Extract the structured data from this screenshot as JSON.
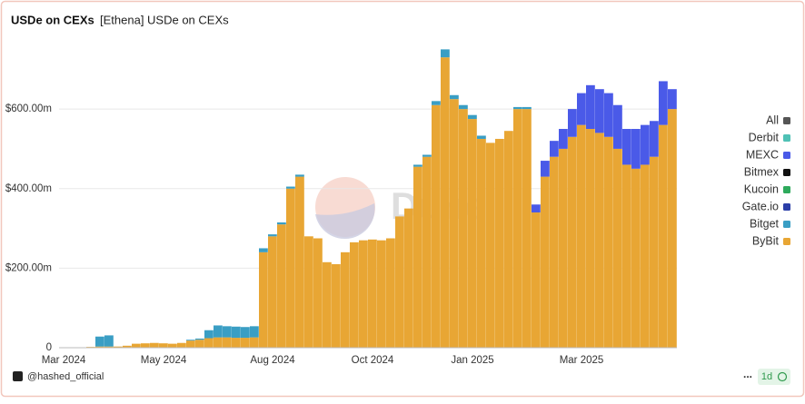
{
  "chart_data": {
    "type": "stacked-bar",
    "title": "USDe on CEXs",
    "subtitle": "[Ethena] USDe on CEXs",
    "watermark": "Dune",
    "author": "@hashed_official",
    "menu": "...",
    "interval": "1d",
    "categories": [
      "Mar 2024",
      null,
      null,
      null,
      null,
      null,
      null,
      null,
      null,
      null,
      null,
      "May 2024",
      null,
      null,
      null,
      null,
      null,
      null,
      null,
      null,
      null,
      null,
      null,
      "Aug 2024",
      null,
      null,
      null,
      null,
      null,
      null,
      null,
      null,
      null,
      null,
      "Oct 2024",
      null,
      null,
      null,
      null,
      null,
      null,
      null,
      null,
      null,
      null,
      "Jan 2025",
      null,
      null,
      null,
      null,
      null,
      null,
      null,
      null,
      null,
      null,
      null,
      "Mar 2025",
      null,
      null,
      null,
      null,
      null,
      null,
      null,
      null,
      null,
      null
    ],
    "ylim": [
      0,
      760
    ],
    "yticks": [
      0,
      {
        "value": 200,
        "label": "$200.00m"
      },
      {
        "value": 400,
        "label": "$400.00m"
      },
      {
        "value": 600,
        "label": "$600.00m"
      }
    ],
    "grid": true,
    "legend": "right",
    "series": [
      {
        "name": "All",
        "color": "#555555",
        "values": [
          0,
          0,
          0,
          0,
          0,
          0,
          0,
          0,
          0,
          0,
          0,
          0,
          0,
          0,
          0,
          0,
          0,
          0,
          0,
          0,
          0,
          0,
          0,
          0,
          0,
          0,
          0,
          0,
          0,
          0,
          0,
          0,
          0,
          0,
          0,
          0,
          0,
          0,
          0,
          0,
          0,
          0,
          0,
          0,
          0,
          0,
          0,
          0,
          0,
          0,
          0,
          0,
          0,
          0,
          0,
          0,
          0,
          0,
          0,
          0,
          0,
          0,
          0,
          0,
          0,
          0,
          0,
          0
        ]
      },
      {
        "name": "Derbit",
        "color": "#4fc1b5",
        "values": [
          0,
          0,
          0,
          0,
          0,
          0,
          0,
          0,
          0,
          0,
          0,
          0,
          0,
          0,
          0,
          0,
          0,
          0,
          0,
          0,
          0,
          0,
          0,
          0,
          0,
          0,
          0,
          0,
          0,
          0,
          0,
          0,
          0,
          0,
          0,
          0,
          0,
          0,
          0,
          0,
          0,
          0,
          0,
          0,
          0,
          0,
          0,
          0,
          0,
          0,
          0,
          0,
          0,
          0,
          0,
          0,
          0,
          0,
          0,
          0,
          0,
          0,
          0,
          0,
          0,
          0,
          0,
          0
        ]
      },
      {
        "name": "MEXC",
        "color": "#4a5ae8",
        "values": [
          0,
          0,
          0,
          0,
          0,
          0,
          0,
          0,
          0,
          0,
          0,
          0,
          0,
          0,
          0,
          0,
          0,
          0,
          0,
          0,
          0,
          0,
          0,
          0,
          0,
          0,
          0,
          0,
          0,
          0,
          0,
          0,
          0,
          0,
          0,
          0,
          0,
          0,
          0,
          0,
          0,
          0,
          0,
          0,
          0,
          0,
          0,
          0,
          0,
          0,
          0,
          0,
          20,
          40,
          40,
          50,
          70,
          80,
          110,
          110,
          110,
          110,
          90,
          100,
          100,
          90,
          110,
          50
        ]
      },
      {
        "name": "Bitmex",
        "color": "#111111",
        "values": [
          0,
          0,
          0,
          0,
          0,
          0,
          0,
          0,
          0,
          0,
          0,
          0,
          0,
          0,
          0,
          0,
          0,
          0,
          0,
          0,
          0,
          0,
          0,
          0,
          0,
          0,
          0,
          0,
          0,
          0,
          0,
          0,
          0,
          0,
          0,
          0,
          0,
          0,
          0,
          0,
          0,
          0,
          0,
          0,
          0,
          0,
          0,
          0,
          0,
          0,
          0,
          0,
          0,
          0,
          0,
          0,
          0,
          0,
          0,
          0,
          0,
          0,
          0,
          0,
          0,
          0,
          0,
          0
        ]
      },
      {
        "name": "Kucoin",
        "color": "#2eaa5c",
        "values": [
          0,
          0,
          0,
          0,
          0,
          0,
          0,
          0,
          0,
          0,
          0,
          0,
          0,
          0,
          0,
          0,
          0,
          0,
          0,
          0,
          0,
          0,
          0,
          0,
          0,
          0,
          0,
          0,
          0,
          0,
          0,
          0,
          0,
          0,
          0,
          0,
          0,
          0,
          0,
          0,
          0,
          0,
          0,
          0,
          0,
          0,
          0,
          0,
          0,
          0,
          0,
          0,
          0,
          0,
          0,
          0,
          0,
          0,
          0,
          0,
          0,
          0,
          0,
          0,
          0,
          0,
          0,
          0
        ]
      },
      {
        "name": "Gate.io",
        "color": "#2c3fa8",
        "values": [
          0,
          0,
          0,
          0,
          0,
          0,
          0,
          0,
          0,
          0,
          0,
          0,
          0,
          0,
          0,
          0,
          0,
          0,
          0,
          0,
          0,
          0,
          0,
          0,
          0,
          0,
          0,
          0,
          0,
          0,
          0,
          0,
          0,
          0,
          0,
          0,
          0,
          0,
          0,
          0,
          0,
          0,
          0,
          0,
          0,
          0,
          0,
          0,
          0,
          0,
          0,
          0,
          0,
          0,
          0,
          0,
          0,
          0,
          0,
          0,
          0,
          0,
          0,
          0,
          0,
          0,
          0,
          0
        ]
      },
      {
        "name": "Bitget",
        "color": "#3a9ec4",
        "values": [
          0,
          0,
          0,
          0,
          25,
          28,
          0,
          0,
          0,
          0,
          0,
          0,
          0,
          0,
          2,
          3,
          20,
          30,
          28,
          28,
          27,
          28,
          10,
          5,
          5,
          5,
          5,
          0,
          0,
          0,
          0,
          0,
          0,
          0,
          0,
          0,
          0,
          0,
          0,
          5,
          5,
          10,
          20,
          10,
          10,
          10,
          8,
          0,
          0,
          0,
          5,
          5,
          0,
          0,
          0,
          0,
          0,
          0,
          0,
          0,
          0,
          0,
          0,
          0,
          0,
          0,
          0,
          0
        ]
      },
      {
        "name": "ByBit",
        "color": "#e8a634",
        "values": [
          1,
          1,
          1,
          2,
          3,
          3,
          3,
          5,
          10,
          11,
          12,
          11,
          10,
          12,
          18,
          20,
          24,
          26,
          26,
          25,
          25,
          26,
          240,
          280,
          310,
          400,
          430,
          280,
          275,
          215,
          210,
          240,
          265,
          270,
          272,
          270,
          275,
          330,
          350,
          455,
          480,
          610,
          730,
          625,
          600,
          575,
          525,
          515,
          525,
          545,
          600,
          600,
          340,
          430,
          480,
          500,
          530,
          560,
          550,
          540,
          530,
          500,
          460,
          450,
          460,
          480,
          560,
          600
        ]
      }
    ]
  }
}
